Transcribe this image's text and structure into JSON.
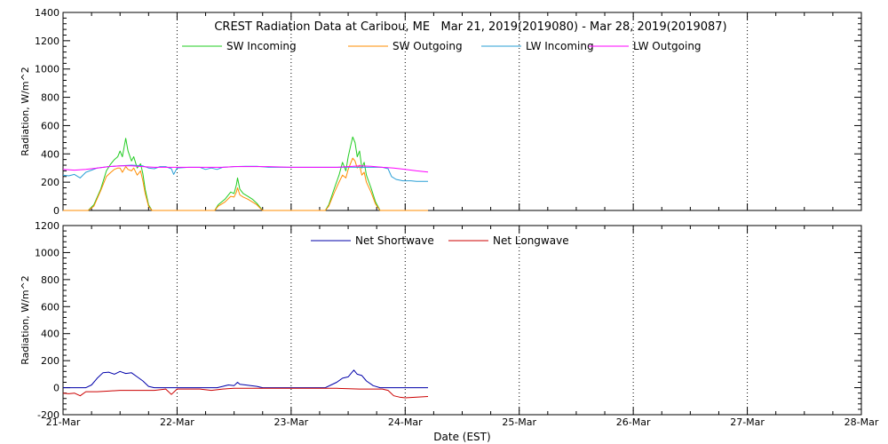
{
  "chart_data": [
    {
      "type": "line",
      "title": "CREST Radiation Data at Caribou, ME   Mar 21, 2019(2019080) - Mar 28, 2019(2019087)",
      "xlabel": "",
      "ylabel": "Radiation, W/m^2",
      "xlim": [
        0,
        7
      ],
      "ylim": [
        0,
        1400
      ],
      "yticks": [
        0,
        200,
        400,
        600,
        800,
        1000,
        1200,
        1400
      ],
      "grid": "vertical dotted at day boundaries",
      "legend": "top, single row",
      "series": [
        {
          "name": "SW Incoming",
          "color": "#22cc22",
          "points": [
            [
              0.0,
              0
            ],
            [
              0.22,
              0
            ],
            [
              0.27,
              40
            ],
            [
              0.33,
              150
            ],
            [
              0.38,
              280
            ],
            [
              0.42,
              330
            ],
            [
              0.45,
              360
            ],
            [
              0.48,
              380
            ],
            [
              0.5,
              420
            ],
            [
              0.52,
              380
            ],
            [
              0.55,
              510
            ],
            [
              0.57,
              420
            ],
            [
              0.6,
              350
            ],
            [
              0.62,
              380
            ],
            [
              0.65,
              300
            ],
            [
              0.68,
              330
            ],
            [
              0.7,
              260
            ],
            [
              0.72,
              150
            ],
            [
              0.75,
              40
            ],
            [
              0.78,
              0
            ],
            [
              1.0,
              0
            ],
            [
              1.33,
              0
            ],
            [
              1.36,
              40
            ],
            [
              1.42,
              80
            ],
            [
              1.47,
              130
            ],
            [
              1.5,
              120
            ],
            [
              1.52,
              180
            ],
            [
              1.53,
              230
            ],
            [
              1.55,
              150
            ],
            [
              1.58,
              120
            ],
            [
              1.62,
              100
            ],
            [
              1.66,
              80
            ],
            [
              1.7,
              50
            ],
            [
              1.73,
              20
            ],
            [
              1.75,
              0
            ],
            [
              2.0,
              0
            ],
            [
              2.3,
              0
            ],
            [
              2.33,
              40
            ],
            [
              2.38,
              160
            ],
            [
              2.42,
              250
            ],
            [
              2.45,
              340
            ],
            [
              2.48,
              280
            ],
            [
              2.5,
              380
            ],
            [
              2.52,
              450
            ],
            [
              2.54,
              520
            ],
            [
              2.56,
              480
            ],
            [
              2.58,
              380
            ],
            [
              2.6,
              420
            ],
            [
              2.62,
              300
            ],
            [
              2.64,
              340
            ],
            [
              2.66,
              250
            ],
            [
              2.7,
              160
            ],
            [
              2.74,
              60
            ],
            [
              2.78,
              0
            ],
            [
              3.0,
              0
            ],
            [
              3.2,
              0
            ]
          ]
        },
        {
          "name": "SW Outgoing",
          "color": "#ff8c00",
          "points": [
            [
              0.0,
              0
            ],
            [
              0.22,
              0
            ],
            [
              0.27,
              30
            ],
            [
              0.33,
              140
            ],
            [
              0.38,
              240
            ],
            [
              0.42,
              270
            ],
            [
              0.45,
              290
            ],
            [
              0.48,
              300
            ],
            [
              0.5,
              300
            ],
            [
              0.52,
              270
            ],
            [
              0.55,
              310
            ],
            [
              0.57,
              290
            ],
            [
              0.6,
              280
            ],
            [
              0.62,
              300
            ],
            [
              0.65,
              250
            ],
            [
              0.68,
              280
            ],
            [
              0.7,
              210
            ],
            [
              0.72,
              120
            ],
            [
              0.75,
              30
            ],
            [
              0.78,
              0
            ],
            [
              1.0,
              0
            ],
            [
              1.33,
              0
            ],
            [
              1.36,
              30
            ],
            [
              1.42,
              60
            ],
            [
              1.47,
              100
            ],
            [
              1.5,
              95
            ],
            [
              1.52,
              130
            ],
            [
              1.53,
              160
            ],
            [
              1.55,
              110
            ],
            [
              1.58,
              95
            ],
            [
              1.62,
              80
            ],
            [
              1.66,
              60
            ],
            [
              1.7,
              40
            ],
            [
              1.73,
              15
            ],
            [
              1.75,
              0
            ],
            [
              2.0,
              0
            ],
            [
              2.3,
              0
            ],
            [
              2.33,
              30
            ],
            [
              2.38,
              130
            ],
            [
              2.42,
              200
            ],
            [
              2.45,
              250
            ],
            [
              2.48,
              230
            ],
            [
              2.5,
              290
            ],
            [
              2.52,
              330
            ],
            [
              2.54,
              370
            ],
            [
              2.56,
              350
            ],
            [
              2.58,
              300
            ],
            [
              2.6,
              320
            ],
            [
              2.62,
              250
            ],
            [
              2.64,
              270
            ],
            [
              2.66,
              200
            ],
            [
              2.7,
              130
            ],
            [
              2.74,
              45
            ],
            [
              2.78,
              0
            ],
            [
              3.0,
              0
            ],
            [
              3.2,
              0
            ]
          ]
        },
        {
          "name": "LW Incoming",
          "color": "#2a9fd6",
          "points": [
            [
              0.0,
              250
            ],
            [
              0.05,
              245
            ],
            [
              0.1,
              255
            ],
            [
              0.15,
              230
            ],
            [
              0.2,
              270
            ],
            [
              0.25,
              285
            ],
            [
              0.3,
              300
            ],
            [
              0.4,
              310
            ],
            [
              0.5,
              315
            ],
            [
              0.6,
              320
            ],
            [
              0.7,
              315
            ],
            [
              0.75,
              300
            ],
            [
              0.8,
              295
            ],
            [
              0.85,
              310
            ],
            [
              0.9,
              310
            ],
            [
              0.95,
              295
            ],
            [
              0.97,
              255
            ],
            [
              1.0,
              300
            ],
            [
              1.1,
              305
            ],
            [
              1.2,
              305
            ],
            [
              1.25,
              290
            ],
            [
              1.3,
              300
            ],
            [
              1.35,
              290
            ],
            [
              1.4,
              305
            ],
            [
              1.5,
              310
            ],
            [
              1.6,
              312
            ],
            [
              1.7,
              312
            ],
            [
              1.8,
              305
            ],
            [
              1.9,
              305
            ],
            [
              2.0,
              305
            ],
            [
              2.1,
              305
            ],
            [
              2.2,
              305
            ],
            [
              2.3,
              305
            ],
            [
              2.4,
              305
            ],
            [
              2.5,
              306
            ],
            [
              2.6,
              305
            ],
            [
              2.7,
              305
            ],
            [
              2.8,
              305
            ],
            [
              2.85,
              295
            ],
            [
              2.88,
              240
            ],
            [
              2.92,
              220
            ],
            [
              2.98,
              210
            ],
            [
              3.05,
              210
            ],
            [
              3.1,
              205
            ],
            [
              3.2,
              205
            ]
          ]
        },
        {
          "name": "LW Outgoing",
          "color": "#ff00ff",
          "points": [
            [
              0.0,
              290
            ],
            [
              0.1,
              285
            ],
            [
              0.2,
              290
            ],
            [
              0.3,
              300
            ],
            [
              0.4,
              310
            ],
            [
              0.5,
              315
            ],
            [
              0.6,
              315
            ],
            [
              0.7,
              310
            ],
            [
              0.8,
              305
            ],
            [
              0.9,
              305
            ],
            [
              1.0,
              305
            ],
            [
              1.2,
              305
            ],
            [
              1.4,
              305
            ],
            [
              1.5,
              310
            ],
            [
              1.6,
              310
            ],
            [
              1.8,
              310
            ],
            [
              2.0,
              305
            ],
            [
              2.2,
              305
            ],
            [
              2.4,
              305
            ],
            [
              2.5,
              310
            ],
            [
              2.6,
              315
            ],
            [
              2.7,
              312
            ],
            [
              2.8,
              305
            ],
            [
              2.9,
              300
            ],
            [
              3.0,
              290
            ],
            [
              3.1,
              280
            ],
            [
              3.2,
              272
            ]
          ]
        }
      ]
    },
    {
      "type": "line",
      "title": "",
      "xlabel": "Date (EST)",
      "ylabel": "Radiation, W/m^2",
      "xlim": [
        0,
        7
      ],
      "ylim": [
        -200,
        1200
      ],
      "yticks": [
        -200,
        0,
        200,
        400,
        600,
        800,
        1000,
        1200
      ],
      "xticks": [
        "21-Mar",
        "22-Mar",
        "23-Mar",
        "24-Mar",
        "25-Mar",
        "26-Mar",
        "27-Mar",
        "28-Mar"
      ],
      "grid": "vertical dotted at day boundaries",
      "legend": "top, single row",
      "series": [
        {
          "name": "Net Shortwave",
          "color": "#0000aa",
          "points": [
            [
              0.0,
              0
            ],
            [
              0.2,
              0
            ],
            [
              0.25,
              20
            ],
            [
              0.3,
              70
            ],
            [
              0.35,
              110
            ],
            [
              0.4,
              115
            ],
            [
              0.45,
              100
            ],
            [
              0.5,
              120
            ],
            [
              0.55,
              105
            ],
            [
              0.6,
              110
            ],
            [
              0.65,
              80
            ],
            [
              0.7,
              50
            ],
            [
              0.75,
              10
            ],
            [
              0.8,
              0
            ],
            [
              1.0,
              0
            ],
            [
              1.35,
              0
            ],
            [
              1.4,
              10
            ],
            [
              1.45,
              20
            ],
            [
              1.5,
              15
            ],
            [
              1.53,
              40
            ],
            [
              1.55,
              25
            ],
            [
              1.6,
              20
            ],
            [
              1.7,
              10
            ],
            [
              1.75,
              0
            ],
            [
              2.0,
              0
            ],
            [
              2.3,
              0
            ],
            [
              2.35,
              20
            ],
            [
              2.4,
              40
            ],
            [
              2.45,
              70
            ],
            [
              2.5,
              80
            ],
            [
              2.53,
              110
            ],
            [
              2.55,
              130
            ],
            [
              2.58,
              100
            ],
            [
              2.62,
              90
            ],
            [
              2.66,
              50
            ],
            [
              2.72,
              15
            ],
            [
              2.78,
              0
            ],
            [
              3.0,
              0
            ],
            [
              3.2,
              0
            ]
          ]
        },
        {
          "name": "Net Longwave",
          "color": "#cc0000",
          "points": [
            [
              0.0,
              -40
            ],
            [
              0.05,
              -45
            ],
            [
              0.1,
              -40
            ],
            [
              0.15,
              -60
            ],
            [
              0.2,
              -30
            ],
            [
              0.3,
              -30
            ],
            [
              0.4,
              -25
            ],
            [
              0.5,
              -20
            ],
            [
              0.6,
              -20
            ],
            [
              0.7,
              -20
            ],
            [
              0.8,
              -20
            ],
            [
              0.9,
              -10
            ],
            [
              0.95,
              -50
            ],
            [
              1.0,
              -10
            ],
            [
              1.2,
              -10
            ],
            [
              1.3,
              -20
            ],
            [
              1.4,
              -10
            ],
            [
              1.5,
              -5
            ],
            [
              1.6,
              -5
            ],
            [
              1.7,
              -5
            ],
            [
              1.8,
              -5
            ],
            [
              2.0,
              -5
            ],
            [
              2.2,
              -5
            ],
            [
              2.4,
              -5
            ],
            [
              2.6,
              -10
            ],
            [
              2.8,
              -10
            ],
            [
              2.85,
              -20
            ],
            [
              2.9,
              -60
            ],
            [
              2.95,
              -70
            ],
            [
              3.0,
              -75
            ],
            [
              3.1,
              -70
            ],
            [
              3.2,
              -65
            ]
          ]
        }
      ]
    }
  ]
}
